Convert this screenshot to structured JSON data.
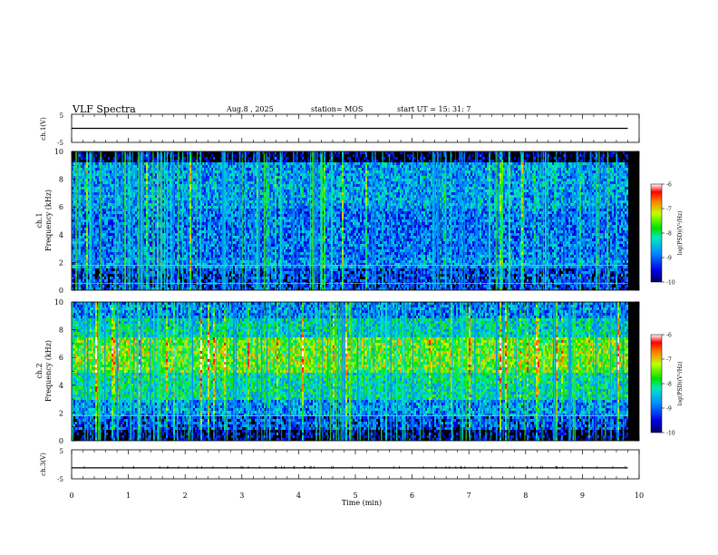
{
  "header": {
    "title": "VLF Spectra",
    "date": "Aug.8  , 2025",
    "station": "station= MOS",
    "start_time": "start  UT  =   15: 31: 7"
  },
  "colors": {
    "noise_floor": "#000000",
    "low": "#0000c8",
    "mid_low": "#0080ff",
    "mid": "#00e000",
    "mid_high": "#ffff00",
    "high": "#ff0000",
    "threshold_line": "#60c0ff",
    "axis": "#000000"
  },
  "chart_data": [
    {
      "type": "line",
      "name": "ch1-waveform",
      "ylabel": "ch.1(V)",
      "ylim": [
        -5,
        5
      ],
      "ytick_labels": [
        "5",
        "-5"
      ],
      "x": [
        0,
        9.8
      ],
      "y": [
        0,
        0
      ]
    },
    {
      "type": "heatmap",
      "name": "ch1-spectrogram",
      "ylabel_lines": [
        "ch.1",
        "Frequency (kHz)"
      ],
      "ylim": [
        0,
        10
      ],
      "ytick_values": [
        0,
        2,
        4,
        6,
        8,
        10
      ],
      "ytick_labels": [
        "0",
        "2",
        "4",
        "6",
        "8",
        "10"
      ],
      "xlim": [
        0,
        10
      ],
      "data_end_min": 9.8,
      "horizontal_lines_khz": [
        0.5,
        1.8
      ],
      "colorbar": {
        "label": "log(PSD)(V²/Hz)",
        "range": [
          -10,
          -6
        ],
        "tick_values": [
          -6,
          -7,
          -8,
          -9,
          -10
        ],
        "tick_labels": [
          "-6",
          "-7",
          "-8",
          "-9",
          "-10"
        ]
      }
    },
    {
      "type": "heatmap",
      "name": "ch2-spectrogram",
      "ylabel_lines": [
        "ch.2",
        "Frequency (kHz)"
      ],
      "ylim": [
        0,
        10
      ],
      "ytick_values": [
        0,
        2,
        4,
        6,
        8,
        10
      ],
      "ytick_labels": [
        "0",
        "2",
        "4",
        "6",
        "8",
        "10"
      ],
      "xlim": [
        0,
        10
      ],
      "data_end_min": 9.8,
      "horizontal_lines_khz": [
        1.8
      ],
      "colorbar": {
        "label": "log(PSD)(V²/Hz)",
        "range": [
          -10,
          -6
        ],
        "tick_values": [
          -6,
          -7,
          -8,
          -9,
          -10
        ],
        "tick_labels": [
          "-6",
          "-7",
          "-8",
          "-9",
          "-10"
        ]
      }
    },
    {
      "type": "line",
      "name": "ch3-waveform",
      "ylabel": "ch.3(V)",
      "ylim": [
        -5,
        5
      ],
      "ytick_labels": [
        "5",
        "-5"
      ],
      "x": [
        0,
        9.8
      ],
      "y": [
        -1.2,
        -1.2
      ]
    }
  ],
  "x_axis": {
    "xlabel": "Time  (min)",
    "xlim": [
      0,
      10
    ],
    "tick_values": [
      0,
      1,
      2,
      3,
      4,
      5,
      6,
      7,
      8,
      9,
      10
    ],
    "tick_labels": [
      "0",
      "1",
      "2",
      "3",
      "4",
      "5",
      "6",
      "7",
      "8",
      "9",
      "10"
    ]
  }
}
